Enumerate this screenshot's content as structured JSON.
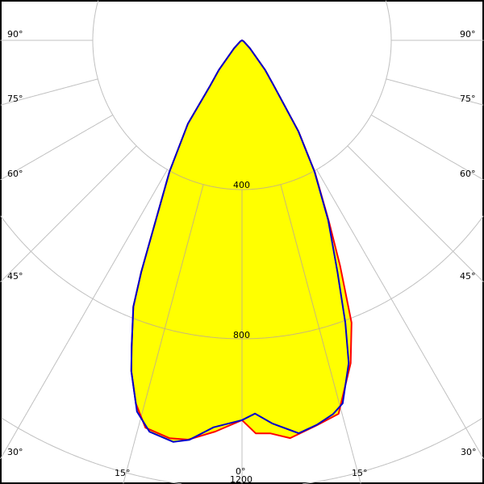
{
  "chart_data": {
    "type": "polar",
    "angle_unit": "deg",
    "radial_ticks": [
      400,
      800,
      1200
    ],
    "radial_tick_labels": [
      "400",
      "800",
      "1200"
    ],
    "angle_ticks": [
      0,
      15,
      30,
      45,
      60,
      75,
      90
    ],
    "angle_tick_labels": [
      "0°",
      "15°",
      "30°",
      "45°",
      "60°",
      "75°",
      "90°"
    ],
    "grid": true,
    "fill_color": "#ffff00",
    "grid_color": "#c0c0c0",
    "series": [
      {
        "color": "#0000cc",
        "points": [
          [
            -90,
            0
          ],
          [
            -60,
            5
          ],
          [
            -45,
            30
          ],
          [
            -38,
            100
          ],
          [
            -35,
            150
          ],
          [
            -33,
            266
          ],
          [
            -28.9,
            402
          ],
          [
            -25.6,
            535
          ],
          [
            -23.5,
            677
          ],
          [
            -22.2,
            771
          ],
          [
            -19.8,
            873
          ],
          [
            -18.5,
            935
          ],
          [
            -15.8,
            1034
          ],
          [
            -13.3,
            1078
          ],
          [
            -9.7,
            1092
          ],
          [
            -7.5,
            1080
          ],
          [
            -4.2,
            1040
          ],
          [
            0,
            1018
          ],
          [
            2,
            1001
          ],
          [
            4.5,
            1030
          ],
          [
            7.6,
            1058
          ],
          [
            8.2,
            1064
          ],
          [
            11,
            1050
          ],
          [
            13.7,
            1031
          ],
          [
            15.5,
            1010
          ],
          [
            18.3,
            911
          ],
          [
            20.1,
            806
          ],
          [
            22.4,
            671
          ],
          [
            25.6,
            535
          ],
          [
            28.9,
            402
          ],
          [
            31.8,
            287
          ],
          [
            35,
            150
          ],
          [
            38,
            100
          ],
          [
            45,
            30
          ],
          [
            60,
            5
          ],
          [
            90,
            0
          ]
        ]
      },
      {
        "color": "#ff0000",
        "points": [
          [
            -90,
            0
          ],
          [
            -60,
            5
          ],
          [
            -45,
            30
          ],
          [
            -38,
            100
          ],
          [
            -35,
            150
          ],
          [
            -33,
            266
          ],
          [
            -28.9,
            402
          ],
          [
            -25.6,
            535
          ],
          [
            -23.5,
            677
          ],
          [
            -22.2,
            771
          ],
          [
            -19.8,
            873
          ],
          [
            -18.5,
            935
          ],
          [
            -16.3,
            1014
          ],
          [
            -14,
            1070
          ],
          [
            -10.3,
            1084
          ],
          [
            -7.7,
            1080
          ],
          [
            -3.9,
            1051
          ],
          [
            0,
            1018
          ],
          [
            2,
            1054
          ],
          [
            4.1,
            1056
          ],
          [
            6.9,
            1074
          ],
          [
            11,
            1051
          ],
          [
            14.5,
            1034
          ],
          [
            18.6,
            913
          ],
          [
            21.2,
            812
          ],
          [
            23.5,
            660
          ],
          [
            25.6,
            540
          ],
          [
            28.9,
            405
          ],
          [
            31.8,
            288
          ],
          [
            35,
            150
          ],
          [
            38,
            100
          ],
          [
            45,
            30
          ],
          [
            60,
            5
          ],
          [
            90,
            0
          ]
        ]
      }
    ]
  }
}
